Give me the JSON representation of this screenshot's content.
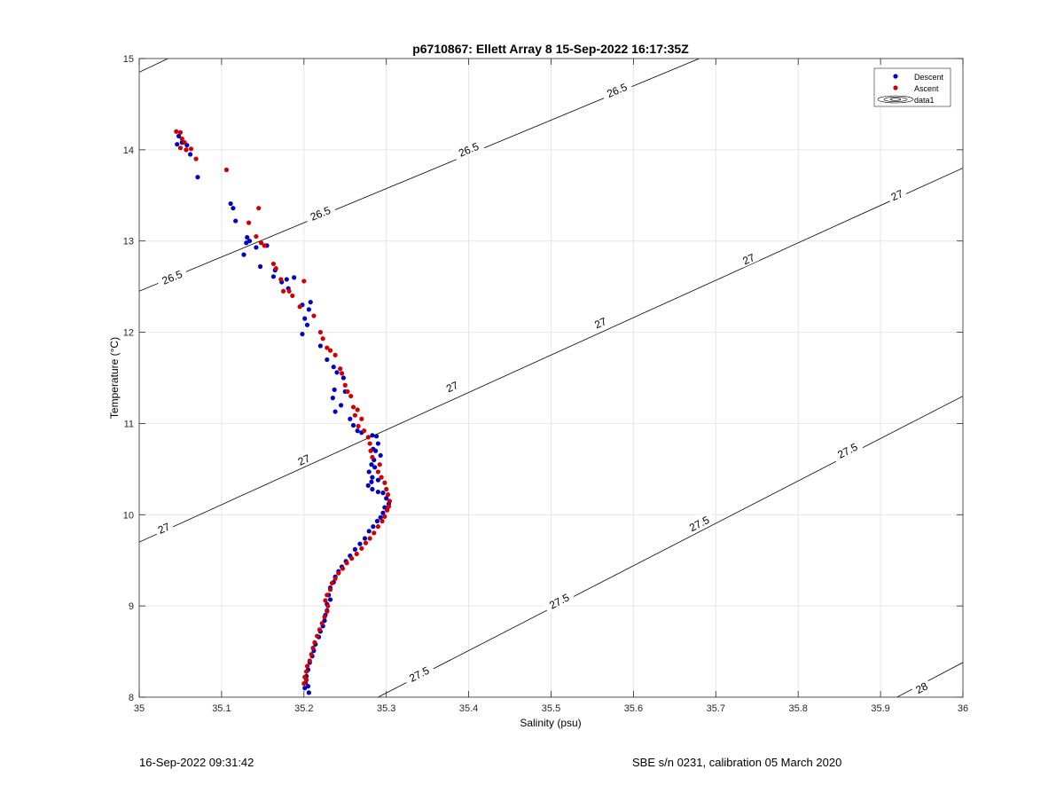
{
  "chart_data": {
    "type": "scatter",
    "title": "p6710867: Ellett Array 8 15-Sep-2022 16:17:35Z",
    "xlabel": "Salinity (psu)",
    "ylabel": "Temperature (°C)",
    "xlim": [
      35,
      36
    ],
    "ylim": [
      8,
      15
    ],
    "xticks": [
      "35",
      "35.1",
      "35.2",
      "35.3",
      "35.4",
      "35.5",
      "35.6",
      "35.7",
      "35.8",
      "35.9",
      "36"
    ],
    "yticks": [
      "8",
      "9",
      "10",
      "11",
      "12",
      "13",
      "14",
      "15"
    ],
    "grid": true,
    "legend_position": "top-right",
    "legend": [
      "Descent",
      "Ascent",
      "data1"
    ],
    "colors": {
      "descent": "#0000c0",
      "ascent": "#d00000",
      "contour": "#000000",
      "grid": "#e6e6e6"
    },
    "contours": [
      {
        "label": "26.5",
        "points": [
          [
            35.0,
            14.85
          ],
          [
            35.035,
            15.0
          ]
        ],
        "labels_at": []
      },
      {
        "label": "26.5",
        "points": [
          [
            35.0,
            12.45
          ],
          [
            35.68,
            15.0
          ]
        ],
        "labels_at": [
          [
            35.04,
            12.6
          ],
          [
            35.22,
            13.3
          ],
          [
            35.4,
            14.0
          ],
          [
            35.58,
            14.65
          ]
        ]
      },
      {
        "label": "27",
        "points": [
          [
            35.0,
            9.7
          ],
          [
            36.0,
            13.8
          ]
        ],
        "labels_at": [
          [
            35.03,
            9.85
          ],
          [
            35.2,
            10.6
          ],
          [
            35.38,
            11.4
          ],
          [
            35.56,
            12.1
          ],
          [
            35.74,
            12.8
          ],
          [
            35.92,
            13.5
          ]
        ]
      },
      {
        "label": "27.5",
        "points": [
          [
            35.29,
            8.0
          ],
          [
            36.0,
            11.3
          ]
        ],
        "labels_at": [
          [
            35.34,
            8.25
          ],
          [
            35.51,
            9.05
          ],
          [
            35.68,
            9.9
          ],
          [
            35.86,
            10.7
          ]
        ]
      },
      {
        "label": "28",
        "points": [
          [
            35.92,
            8.0
          ],
          [
            36.0,
            8.38
          ]
        ],
        "labels_at": [
          [
            35.95,
            8.1
          ]
        ]
      }
    ],
    "series": [
      {
        "name": "Descent",
        "points": [
          [
            35.048,
            14.15
          ],
          [
            35.052,
            14.08
          ],
          [
            35.046,
            14.06
          ],
          [
            35.058,
            14.05
          ],
          [
            35.062,
            13.95
          ],
          [
            35.071,
            13.7
          ],
          [
            35.111,
            13.41
          ],
          [
            35.114,
            13.36
          ],
          [
            35.117,
            13.22
          ],
          [
            35.131,
            13.04
          ],
          [
            35.134,
            13.0
          ],
          [
            35.13,
            12.98
          ],
          [
            35.142,
            12.93
          ],
          [
            35.127,
            12.85
          ],
          [
            35.147,
            12.72
          ],
          [
            35.155,
            12.95
          ],
          [
            35.165,
            12.68
          ],
          [
            35.163,
            12.61
          ],
          [
            35.173,
            12.55
          ],
          [
            35.179,
            12.58
          ],
          [
            35.181,
            12.48
          ],
          [
            35.188,
            12.6
          ],
          [
            35.198,
            12.3
          ],
          [
            35.206,
            12.25
          ],
          [
            35.201,
            12.15
          ],
          [
            35.208,
            12.33
          ],
          [
            35.204,
            12.08
          ],
          [
            35.198,
            11.98
          ],
          [
            35.22,
            11.85
          ],
          [
            35.228,
            11.7
          ],
          [
            35.236,
            11.62
          ],
          [
            35.24,
            11.56
          ],
          [
            35.248,
            11.5
          ],
          [
            35.25,
            11.35
          ],
          [
            35.237,
            11.37
          ],
          [
            35.235,
            11.28
          ],
          [
            35.245,
            11.2
          ],
          [
            35.238,
            11.13
          ],
          [
            35.256,
            11.05
          ],
          [
            35.26,
            10.98
          ],
          [
            35.265,
            10.92
          ],
          [
            35.27,
            10.9
          ],
          [
            35.283,
            10.87
          ],
          [
            35.288,
            10.86
          ],
          [
            35.29,
            10.78
          ],
          [
            35.284,
            10.72
          ],
          [
            35.287,
            10.7
          ],
          [
            35.293,
            10.65
          ],
          [
            35.285,
            10.6
          ],
          [
            35.282,
            10.55
          ],
          [
            35.286,
            10.52
          ],
          [
            35.279,
            10.47
          ],
          [
            35.283,
            10.41
          ],
          [
            35.29,
            10.38
          ],
          [
            35.282,
            10.36
          ],
          [
            35.278,
            10.32
          ],
          [
            35.283,
            10.28
          ],
          [
            35.29,
            10.25
          ],
          [
            35.296,
            10.24
          ],
          [
            35.3,
            10.18
          ],
          [
            35.303,
            10.12
          ],
          [
            35.298,
            10.08
          ],
          [
            35.296,
            10.02
          ],
          [
            35.293,
            9.97
          ],
          [
            35.289,
            9.93
          ],
          [
            35.284,
            9.87
          ],
          [
            35.279,
            9.82
          ],
          [
            35.274,
            9.74
          ],
          [
            35.268,
            9.68
          ],
          [
            35.262,
            9.62
          ],
          [
            35.256,
            9.55
          ],
          [
            35.251,
            9.49
          ],
          [
            35.246,
            9.43
          ],
          [
            35.242,
            9.38
          ],
          [
            35.238,
            9.32
          ],
          [
            35.236,
            9.26
          ],
          [
            35.232,
            9.2
          ],
          [
            35.23,
            9.12
          ],
          [
            35.232,
            9.07
          ],
          [
            35.228,
            9.02
          ],
          [
            35.228,
            8.95
          ],
          [
            35.226,
            8.9
          ],
          [
            35.225,
            8.84
          ],
          [
            35.223,
            8.78
          ],
          [
            35.22,
            8.72
          ],
          [
            35.218,
            8.66
          ],
          [
            35.214,
            8.58
          ],
          [
            35.212,
            8.51
          ],
          [
            35.21,
            8.45
          ],
          [
            35.207,
            8.38
          ],
          [
            35.205,
            8.3
          ],
          [
            35.203,
            8.23
          ],
          [
            35.202,
            8.16
          ],
          [
            35.201,
            8.1
          ],
          [
            35.205,
            8.12
          ],
          [
            35.206,
            8.05
          ]
        ]
      },
      {
        "name": "Ascent",
        "points": [
          [
            35.045,
            14.2
          ],
          [
            35.05,
            14.19
          ],
          [
            35.052,
            14.12
          ],
          [
            35.055,
            14.08
          ],
          [
            35.05,
            14.02
          ],
          [
            35.057,
            14.0
          ],
          [
            35.063,
            14.01
          ],
          [
            35.069,
            13.9
          ],
          [
            35.106,
            13.78
          ],
          [
            35.145,
            13.36
          ],
          [
            35.133,
            13.2
          ],
          [
            35.142,
            13.05
          ],
          [
            35.148,
            12.98
          ],
          [
            35.152,
            12.95
          ],
          [
            35.163,
            12.75
          ],
          [
            35.166,
            12.7
          ],
          [
            35.172,
            12.58
          ],
          [
            35.175,
            12.45
          ],
          [
            35.182,
            12.45
          ],
          [
            35.186,
            12.4
          ],
          [
            35.195,
            12.28
          ],
          [
            35.2,
            12.56
          ],
          [
            35.212,
            12.18
          ],
          [
            35.22,
            12.0
          ],
          [
            35.223,
            11.93
          ],
          [
            35.228,
            11.83
          ],
          [
            35.232,
            11.8
          ],
          [
            35.238,
            11.75
          ],
          [
            35.244,
            11.6
          ],
          [
            35.246,
            11.55
          ],
          [
            35.25,
            11.42
          ],
          [
            35.257,
            11.3
          ],
          [
            35.253,
            11.35
          ],
          [
            35.26,
            11.18
          ],
          [
            35.265,
            11.15
          ],
          [
            35.262,
            11.09
          ],
          [
            35.27,
            11.05
          ],
          [
            35.266,
            10.97
          ],
          [
            35.273,
            10.92
          ],
          [
            35.278,
            10.85
          ],
          [
            35.28,
            10.78
          ],
          [
            35.281,
            10.7
          ],
          [
            35.283,
            10.63
          ],
          [
            35.292,
            10.55
          ],
          [
            35.29,
            10.47
          ],
          [
            35.294,
            10.41
          ],
          [
            35.298,
            10.35
          ],
          [
            35.3,
            10.28
          ],
          [
            35.302,
            10.22
          ],
          [
            35.304,
            10.15
          ],
          [
            35.303,
            10.09
          ],
          [
            35.301,
            10.05
          ],
          [
            35.298,
            9.98
          ],
          [
            35.295,
            9.93
          ],
          [
            35.29,
            9.87
          ],
          [
            35.285,
            9.8
          ],
          [
            35.28,
            9.74
          ],
          [
            35.275,
            9.69
          ],
          [
            35.27,
            9.63
          ],
          [
            35.264,
            9.57
          ],
          [
            35.258,
            9.52
          ],
          [
            35.252,
            9.47
          ],
          [
            35.247,
            9.41
          ],
          [
            35.242,
            9.36
          ],
          [
            35.238,
            9.3
          ],
          [
            35.234,
            9.25
          ],
          [
            35.232,
            9.18
          ],
          [
            35.228,
            9.12
          ],
          [
            35.226,
            9.06
          ],
          [
            35.229,
            9.0
          ],
          [
            35.228,
            8.94
          ],
          [
            35.225,
            8.88
          ],
          [
            35.222,
            8.81
          ],
          [
            35.219,
            8.74
          ],
          [
            35.216,
            8.67
          ],
          [
            35.213,
            8.6
          ],
          [
            35.211,
            8.54
          ],
          [
            35.209,
            8.47
          ],
          [
            35.207,
            8.4
          ],
          [
            35.204,
            8.34
          ],
          [
            35.203,
            8.28
          ],
          [
            35.201,
            8.22
          ],
          [
            35.2,
            8.15
          ],
          [
            35.203,
            8.19
          ]
        ]
      }
    ]
  },
  "footer": {
    "timestamp": "16-Sep-2022 09:31:42",
    "calibration": "SBE s/n 0231, calibration 05 March 2020"
  }
}
